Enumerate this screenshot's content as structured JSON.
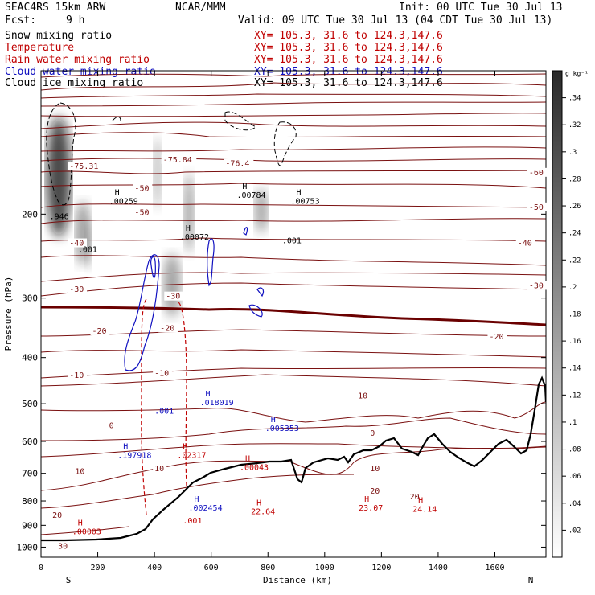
{
  "header": {
    "model": "SEAC4RS 15km ARW",
    "center": "NCAR/MMM",
    "init": "Init: 00 UTC Tue 30 Jul 13",
    "fcst_label": "Fcst:",
    "fcst_value": "9 h",
    "valid": "Valid: 09 UTC Tue 30 Jul 13 (04 CDT Tue 30 Jul 13)"
  },
  "fields": [
    {
      "name": "Snow mixing ratio",
      "xy": "XY= 105.3, 31.6 to 124.3,147.6",
      "color": "#000000"
    },
    {
      "name": "Temperature",
      "xy": "XY= 105.3, 31.6 to 124.3,147.6",
      "color": "#c00000"
    },
    {
      "name": "Rain water mixing ratio",
      "xy": "XY= 105.3, 31.6 to 124.3,147.6",
      "color": "#c00000"
    },
    {
      "name": "Cloud water mixing ratio",
      "xy": "XY= 105.3, 31.6 to 124.3,147.6",
      "color": "#1010c0"
    },
    {
      "name": "Cloud ice mixing ratio",
      "xy": "XY= 105.3, 31.6 to 124.3,147.6",
      "color": "#000000"
    }
  ],
  "chart_data": {
    "type": "contour",
    "xlabel": "Distance (km)",
    "ylabel": "Pressure (hPa)",
    "xlim": [
      0,
      1780
    ],
    "ylim": [
      1050,
      100
    ],
    "yscale": "log",
    "x_ticks": [
      0,
      200,
      400,
      600,
      800,
      1000,
      1200,
      1400,
      1600
    ],
    "y_ticks": [
      200,
      300,
      400,
      500,
      600,
      700,
      800,
      900,
      1000
    ],
    "x_end_labels": {
      "left": "S",
      "right": "N"
    },
    "colorbar": {
      "unit": "g kg⁻¹",
      "ticks": [
        ".02",
        ".04",
        ".06",
        ".08",
        ".1",
        ".12",
        ".14",
        ".16",
        ".18",
        ".2",
        ".22",
        ".24",
        ".26",
        ".28",
        ".3",
        ".32",
        ".34"
      ],
      "max": 0.36
    },
    "temperature_labels": [
      {
        "x": 100,
        "p": 160,
        "text": "-75.31"
      },
      {
        "x": 430,
        "p": 155,
        "text": "-75.84"
      },
      {
        "x": 650,
        "p": 158,
        "text": "-76.4"
      },
      {
        "x": 1720,
        "p": 165,
        "text": "-60"
      },
      {
        "x": 1720,
        "p": 195,
        "text": "-50"
      },
      {
        "x": 1680,
        "p": 232,
        "text": "-40"
      },
      {
        "x": 1720,
        "p": 285,
        "text": "-30"
      },
      {
        "x": 1580,
        "p": 365,
        "text": "-20"
      },
      {
        "x": 1100,
        "p": 485,
        "text": "-10"
      },
      {
        "x": 1160,
        "p": 582,
        "text": "0"
      },
      {
        "x": 1160,
        "p": 690,
        "text": "10"
      },
      {
        "x": 1160,
        "p": 770,
        "text": "20"
      },
      {
        "x": 100,
        "p": 232,
        "text": "-40"
      },
      {
        "x": 100,
        "p": 290,
        "text": "-30"
      },
      {
        "x": 180,
        "p": 355,
        "text": "-20"
      },
      {
        "x": 100,
        "p": 440,
        "text": "-10"
      },
      {
        "x": 240,
        "p": 560,
        "text": "0"
      },
      {
        "x": 120,
        "p": 700,
        "text": "10"
      },
      {
        "x": 40,
        "p": 865,
        "text": "20"
      },
      {
        "x": 60,
        "p": 1005,
        "text": "30"
      },
      {
        "x": 440,
        "p": 300,
        "text": "-30"
      },
      {
        "x": 420,
        "p": 350,
        "text": "-20"
      },
      {
        "x": 400,
        "p": 435,
        "text": "-10"
      },
      {
        "x": 400,
        "p": 690,
        "text": "10"
      },
      {
        "x": 1300,
        "p": 790,
        "text": "20"
      },
      {
        "x": 330,
        "p": 178,
        "text": "-50"
      },
      {
        "x": 330,
        "p": 200,
        "text": "-50"
      }
    ],
    "extrema": [
      {
        "x": 240,
        "p": 185,
        "text": ".00259",
        "color": "#000000"
      },
      {
        "x": 490,
        "p": 220,
        "text": ".00072",
        "color": "#000000"
      },
      {
        "x": 690,
        "p": 180,
        "text": ".00784",
        "color": "#000000"
      },
      {
        "x": 880,
        "p": 185,
        "text": ".00753",
        "color": "#000000"
      },
      {
        "x": 560,
        "p": 490,
        "text": ".018019",
        "color": "#1010c0"
      },
      {
        "x": 790,
        "p": 555,
        "text": ".005353",
        "color": "#1010c0"
      },
      {
        "x": 270,
        "p": 632,
        "text": ".197918",
        "color": "#1010c0"
      },
      {
        "x": 480,
        "p": 632,
        "text": ".02317",
        "color": "#c00000"
      },
      {
        "x": 700,
        "p": 670,
        "text": ".00043",
        "color": "#c00000"
      },
      {
        "x": 520,
        "p": 815,
        "text": ".002454",
        "color": "#1010c0"
      },
      {
        "x": 740,
        "p": 830,
        "text": "22.64",
        "color": "#c00000"
      },
      {
        "x": 1120,
        "p": 815,
        "text": "23.07",
        "color": "#c00000"
      },
      {
        "x": 1310,
        "p": 820,
        "text": "24.14",
        "color": "#c00000"
      },
      {
        "x": 110,
        "p": 915,
        "text": ".00003",
        "color": "#c00000"
      }
    ],
    "other_labels": [
      {
        "x": 30,
        "p": 205,
        "text": ".946",
        "color": "#000000"
      },
      {
        "x": 130,
        "p": 240,
        "text": ".001",
        "color": "#000000"
      },
      {
        "x": 850,
        "p": 230,
        "text": ".001",
        "color": "#000000"
      },
      {
        "x": 400,
        "p": 525,
        "text": ".001",
        "color": "#1010c0"
      },
      {
        "x": 500,
        "p": 892,
        "text": ".001",
        "color": "#c00000"
      }
    ]
  }
}
